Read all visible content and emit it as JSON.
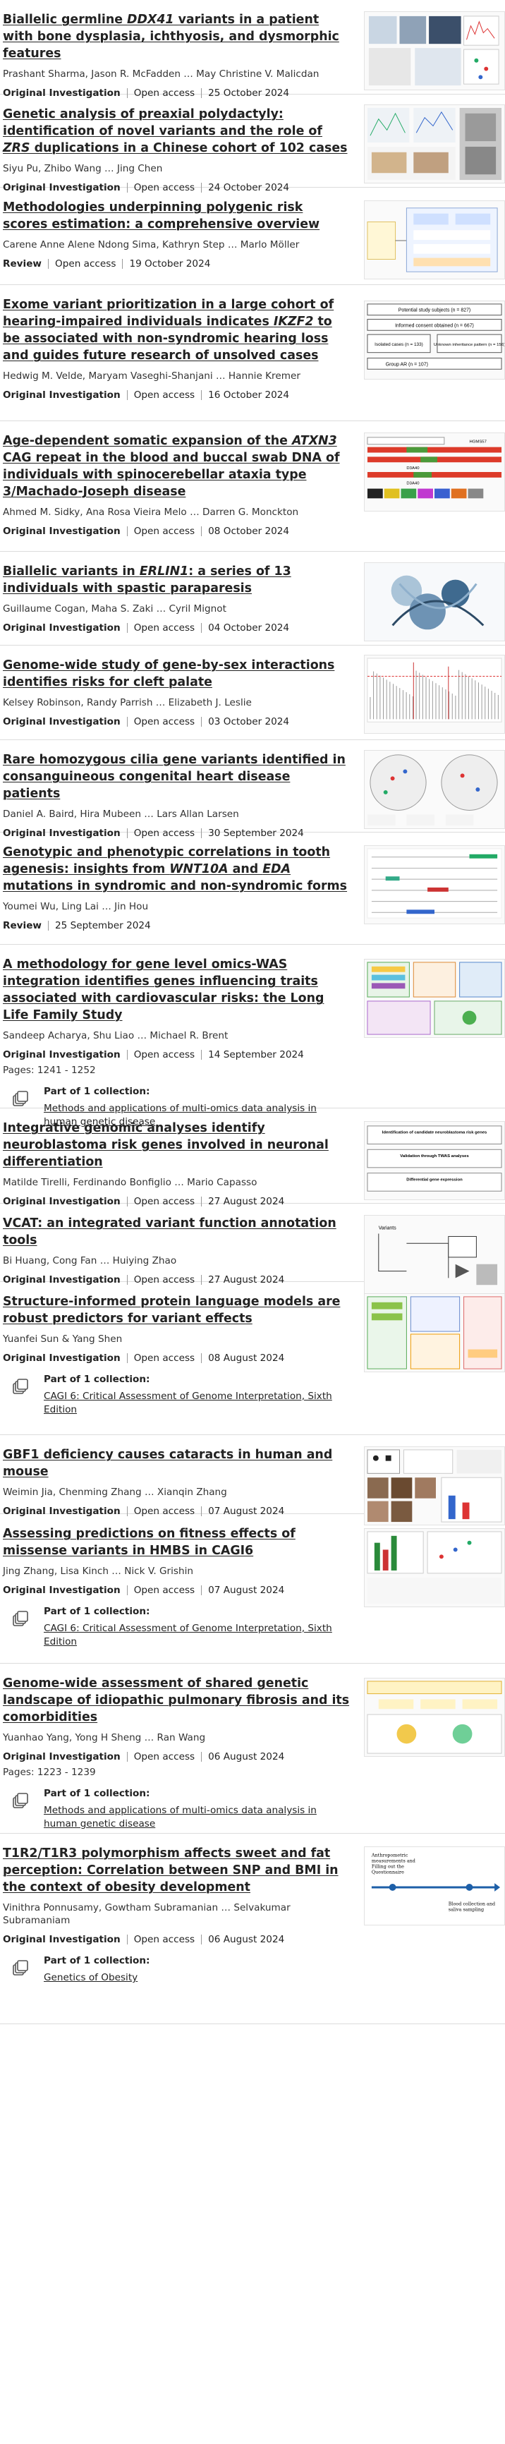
{
  "labels": {
    "open_access": "Open access",
    "part_of_collection": "Part of 1 collection:"
  },
  "articles": [
    {
      "title_pre": "Biallelic germline ",
      "title_em": "DDX41",
      "title_post": " variants in a patient with bone dysplasia, ichthyosis, and dysmorphic features",
      "authors": "Prashant Sharma, Jason R. McFadden … May Christine V. Malicdan",
      "type": "Original Investigation",
      "date": "25 October 2024"
    },
    {
      "title_pre": "Genetic analysis of preaxial polydactyly: identification of novel variants and the role of ",
      "title_em": "ZRS",
      "title_post": " duplications in a Chinese cohort of 102 cases",
      "authors": "Siyu Pu, Zhibo Wang … Jing Chen",
      "type": "Original Investigation",
      "date": "24 October 2024"
    },
    {
      "title_pre": "Methodologies underpinning polygenic risk scores estimation: a comprehensive overview",
      "authors": "Carene Anne Alene Ndong Sima, Kathryn Step … Marlo Möller",
      "type": "Review",
      "date": "19 October 2024"
    },
    {
      "title_pre": "Exome variant prioritization in a large cohort of hearing-impaired individuals indicates ",
      "title_em": "IKZF2",
      "title_post": " to be associated with non-syndromic hearing loss and guides future research of unsolved cases",
      "authors": "Hedwig M. Velde, Maryam Vaseghi-Shanjani … Hannie Kremer",
      "type": "Original Investigation",
      "date": "16 October 2024"
    },
    {
      "title_pre": "Age-dependent somatic expansion of the ",
      "title_em": "ATXN3",
      "title_post": " CAG repeat in the blood and buccal swab DNA of individuals with spinocerebellar ataxia type 3/Machado-Joseph disease",
      "authors": "Ahmed M. Sidky, Ana Rosa Vieira Melo … Darren G. Monckton",
      "type": "Original Investigation",
      "date": "08 October 2024"
    },
    {
      "title_pre": "Biallelic variants in ",
      "title_em": "ERLIN1",
      "title_post": ": a series of 13 individuals with spastic paraparesis",
      "authors": "Guillaume Cogan, Maha S. Zaki … Cyril Mignot",
      "type": "Original Investigation",
      "date": "04 October 2024"
    },
    {
      "title_pre": "Genome-wide study of gene-by-sex interactions identifies risks for cleft palate",
      "authors": "Kelsey Robinson, Randy Parrish … Elizabeth J. Leslie",
      "type": "Original Investigation",
      "date": "03 October 2024"
    },
    {
      "title_pre": "Rare homozygous cilia gene variants identified in consanguineous congenital heart disease patients",
      "authors": "Daniel A. Baird, Hira Mubeen … Lars Allan Larsen",
      "type": "Original Investigation",
      "date": "30 September 2024"
    },
    {
      "title_pre": "Genotypic and phenotypic correlations in tooth agenesis: insights from ",
      "title_em": "WNT10A",
      "title_mid": " and ",
      "title_em2": "EDA",
      "title_post": " mutations in syndromic and non-syndromic forms",
      "authors": "Youmei Wu, Ling Lai … Jin Hou",
      "type": "Review",
      "date": "25 September 2024"
    },
    {
      "title_pre": "A methodology for gene level omics-WAS integration identifies genes influencing traits associated with cardiovascular risks: the Long Life Family Study",
      "authors": "Sandeep Acharya, Shu Liao … Michael R. Brent",
      "type": "Original Investigation",
      "date": "14 September 2024",
      "pages": "Pages: 1241 - 1252",
      "collection": "Methods and applications of multi-omics data analysis in human genetic disease"
    },
    {
      "title_pre": "Integrative genomic analyses identify neuroblastoma risk genes involved in neuronal differentiation",
      "authors": "Matilde Tirelli, Ferdinando Bonfiglio … Mario Capasso",
      "type": "Original Investigation",
      "date": "27 August 2024"
    },
    {
      "title_pre": "VCAT: an integrated variant function annotation tools",
      "authors": "Bi Huang, Cong Fan … Huiying Zhao",
      "type": "Original Investigation",
      "date": "27 August 2024"
    },
    {
      "title_pre": "Structure-informed protein language models are robust predictors for variant effects",
      "authors": "Yuanfei Sun & Yang Shen",
      "type": "Original Investigation",
      "date": "08 August 2024",
      "collection": "CAGI 6: Critical Assessment of Genome Interpretation, Sixth Edition"
    },
    {
      "title_pre": "GBF1 deficiency causes cataracts in human and mouse",
      "authors": "Weimin Jia, Chenming Zhang … Xianqin Zhang",
      "type": "Original Investigation",
      "date": "07 August 2024"
    },
    {
      "title_pre": "Assessing predictions on fitness effects of missense variants in HMBS in CAGI6",
      "authors": "Jing Zhang, Lisa Kinch … Nick V. Grishin",
      "type": "Original Investigation",
      "date": "07 August 2024",
      "collection": "CAGI 6: Critical Assessment of Genome Interpretation, Sixth Edition"
    },
    {
      "title_pre": "Genome-wide assessment of shared genetic landscape of idiopathic pulmonary fibrosis and its comorbidities",
      "authors": "Yuanhao Yang, Yong H Sheng … Ran Wang",
      "type": "Original Investigation",
      "date": "06 August 2024",
      "pages": "Pages: 1223 - 1239",
      "collection": "Methods and applications of multi-omics data analysis in human genetic disease"
    },
    {
      "title_pre": "T1R2/T1R3 polymorphism affects sweet and fat perception: Correlation between SNP and BMI in the context of obesity development",
      "authors": "Vinithra Ponnusamy, Gowtham Subramanian … Selvakumar Subramaniam",
      "type": "Original Investigation",
      "date": "06 August 2024",
      "collection": "Genetics of Obesity"
    }
  ],
  "thumb_text": {
    "t4_rows": [
      "Potential study subjects (n = 827)",
      "Informed consent obtained (n = 667)",
      "Isolated cases (n = 133)",
      "Unknown inheritance pattern (n = 156)",
      "Group AR (n = 107)"
    ],
    "t5_labels": [
      "HGMS57",
      "D3A40",
      "D3A40"
    ],
    "t10_rows": [
      "Identification of candidate neuroblastoma risk genes",
      "Validation through TWAS analyses",
      "Differential gene expression"
    ],
    "t12_labels": [
      "Variants"
    ],
    "t17_labels": [
      "Anthropometric measurements and Filling out the Questionnaire",
      "Blood collection and saliva sampling"
    ]
  }
}
